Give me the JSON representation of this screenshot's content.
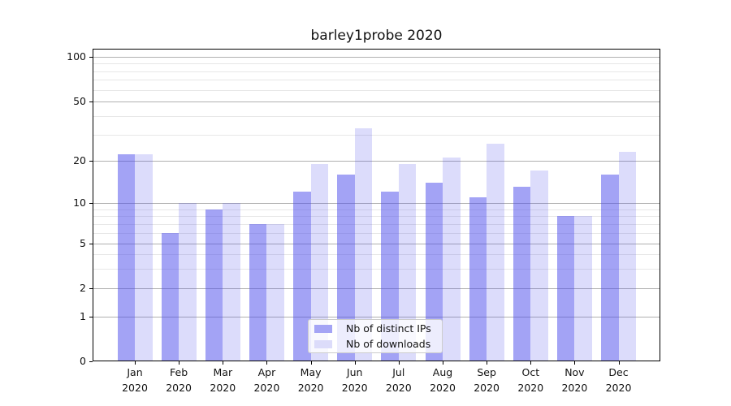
{
  "title": "barley1probe 2020",
  "chart_data": {
    "type": "bar",
    "title": "barley1probe 2020",
    "xlabel": "",
    "ylabel": "",
    "categories": [
      "Jan 2020",
      "Feb 2020",
      "Mar 2020",
      "Apr 2020",
      "May 2020",
      "Jun 2020",
      "Jul 2020",
      "Aug 2020",
      "Sep 2020",
      "Oct 2020",
      "Nov 2020",
      "Dec 2020"
    ],
    "x_tick_months": [
      "Jan",
      "Feb",
      "Mar",
      "Apr",
      "May",
      "Jun",
      "Jul",
      "Aug",
      "Sep",
      "Oct",
      "Nov",
      "Dec"
    ],
    "x_tick_year": "2020",
    "series": [
      {
        "name": "Nb of distinct IPs",
        "values": [
          22,
          6,
          9,
          7,
          12,
          16,
          12,
          14,
          11,
          13,
          8,
          16
        ],
        "color": "rgba(71,71,235,0.50)",
        "legend_swatch_color": "#a4a4f5"
      },
      {
        "name": "Nb of downloads",
        "values": [
          22,
          10,
          10,
          7,
          19,
          33,
          19,
          21,
          26,
          17,
          8,
          23
        ],
        "color": "rgba(71,71,235,0.19)",
        "legend_swatch_color": "#dcdcfa"
      }
    ],
    "yscale": "symlog",
    "ylim": [
      0,
      100
    ],
    "y_ticks": [
      0,
      1,
      2,
      5,
      10,
      20,
      50,
      100
    ],
    "y_minor_ticks": [
      3,
      4,
      6,
      7,
      8,
      9,
      30,
      40,
      60,
      70,
      80,
      90
    ],
    "grid": true,
    "legend_position": "lower center",
    "major_grid_color": "#b0b0b0",
    "minor_grid_color": "#e7e7e7"
  }
}
